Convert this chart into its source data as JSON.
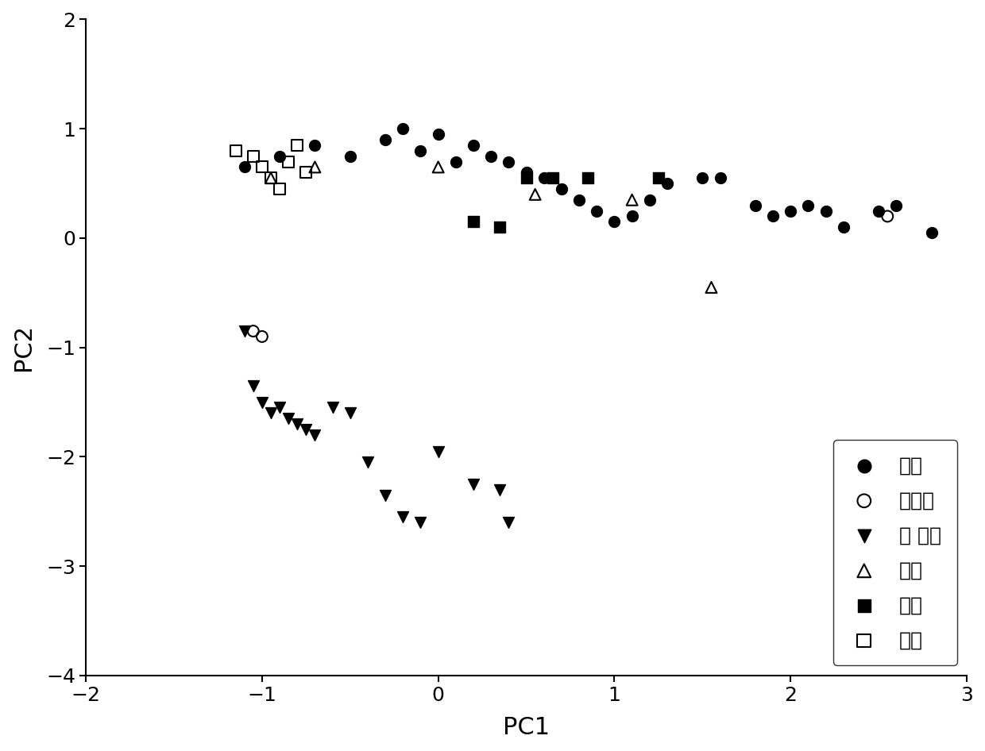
{
  "title": "",
  "xlabel": "PC1",
  "ylabel": "PC2",
  "xlim": [
    -2,
    3
  ],
  "ylim": [
    -4,
    2
  ],
  "xticks": [
    -2,
    -1,
    0,
    1,
    2,
    3
  ],
  "yticks": [
    -4,
    -3,
    -2,
    -1,
    0,
    1,
    2
  ],
  "korea": {
    "label": "韩国",
    "marker": "o",
    "color": "black",
    "filled": true,
    "x": [
      -1.1,
      -0.9,
      -0.7,
      -0.5,
      -0.3,
      -0.2,
      -0.1,
      0.0,
      0.1,
      0.2,
      0.3,
      0.4,
      0.5,
      0.6,
      0.7,
      0.8,
      0.9,
      1.0,
      1.1,
      1.2,
      1.3,
      1.5,
      1.6,
      1.8,
      1.9,
      2.0,
      2.1,
      2.2,
      2.3,
      2.5,
      2.6,
      2.8
    ],
    "y": [
      0.65,
      0.75,
      0.85,
      0.75,
      0.9,
      1.0,
      0.8,
      0.95,
      0.7,
      0.85,
      0.75,
      0.7,
      0.6,
      0.55,
      0.45,
      0.35,
      0.25,
      0.15,
      0.2,
      0.35,
      0.5,
      0.55,
      0.55,
      0.3,
      0.2,
      0.25,
      0.3,
      0.25,
      0.1,
      0.25,
      0.3,
      0.05
    ]
  },
  "singapore": {
    "label": "新加坡",
    "marker": "o",
    "color": "black",
    "filled": false,
    "x": [
      -1.05,
      -1.0,
      2.55
    ],
    "y": [
      -0.85,
      -0.9,
      0.2
    ]
  },
  "ireland": {
    "label": "爱 尔兰",
    "marker": "v",
    "color": "black",
    "filled": true,
    "x": [
      -1.1,
      -1.05,
      -1.0,
      -0.95,
      -0.9,
      -0.85,
      -0.8,
      -0.75,
      -0.7,
      -0.6,
      -0.5,
      -0.4,
      -0.3,
      -0.2,
      -0.1,
      0.0,
      0.2,
      0.35,
      0.4
    ],
    "y": [
      -0.85,
      -1.35,
      -1.5,
      -1.6,
      -1.55,
      -1.65,
      -1.7,
      -1.75,
      -1.8,
      -1.55,
      -1.6,
      -2.05,
      -2.35,
      -2.55,
      -2.6,
      -1.95,
      -2.25,
      -2.3,
      -2.6
    ]
  },
  "netherlands": {
    "label": "荷兰",
    "marker": "^",
    "color": "black",
    "filled": false,
    "x": [
      -0.95,
      -0.7,
      0.0,
      0.55,
      1.1,
      1.55
    ],
    "y": [
      0.55,
      0.65,
      0.65,
      0.4,
      0.35,
      -0.45
    ]
  },
  "germany": {
    "label": "德国",
    "marker": "s",
    "color": "black",
    "filled": true,
    "x": [
      0.2,
      0.35,
      0.5,
      0.65,
      0.85,
      1.25
    ],
    "y": [
      0.15,
      0.1,
      0.55,
      0.55,
      0.55,
      0.55
    ]
  },
  "switzerland": {
    "label": "瑞士",
    "marker": "s",
    "color": "black",
    "filled": false,
    "x": [
      -1.15,
      -1.05,
      -1.0,
      -0.95,
      -0.9,
      -0.85,
      -0.8,
      -0.75
    ],
    "y": [
      0.8,
      0.75,
      0.65,
      0.55,
      0.45,
      0.7,
      0.85,
      0.6
    ]
  },
  "holland_outlier": {
    "x": [
      -0.8
    ],
    "y": [
      1.7
    ]
  }
}
